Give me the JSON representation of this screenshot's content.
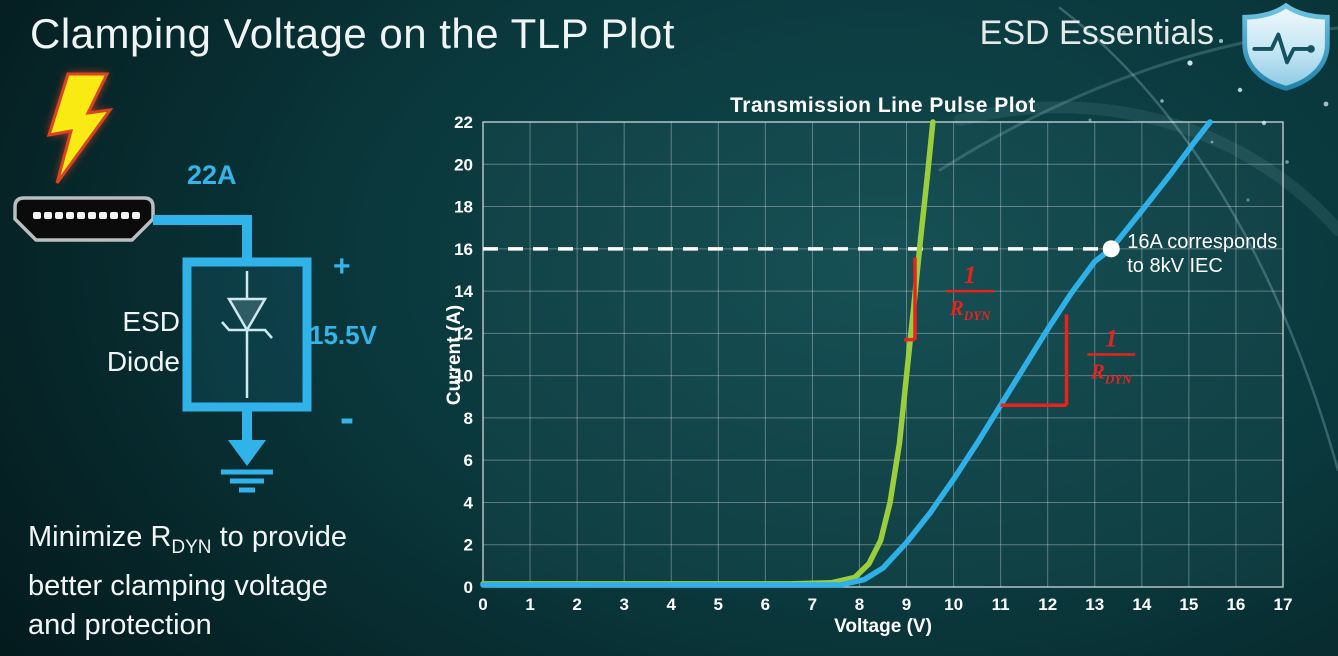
{
  "page": {
    "title": "Clamping Voltage on the TLP Plot",
    "brand": "ESD Essentials",
    "accent_cyan": "#2fb3e8"
  },
  "diagram": {
    "surge_label": "22A",
    "plus_label": "+",
    "voltage_label": "15.5V",
    "minus_label": "-",
    "component_line1": "ESD",
    "component_line2": "Diode",
    "icons": [
      "lightning-icon",
      "hdmi-connector-icon",
      "esd-diode-box",
      "zener-diode-symbol",
      "arrow-down-icon",
      "ground-icon"
    ]
  },
  "takeaway": {
    "line1_pre": "Minimize R",
    "line1_sub": "DYN",
    "line1_post": " to provide",
    "line2": "better clamping voltage",
    "line3": "and protection"
  },
  "chart_data": {
    "type": "line",
    "title": "Transmission Line Pulse Plot",
    "xlabel": "Voltage (V)",
    "ylabel": "Current (A)",
    "xlim": [
      0,
      17
    ],
    "ylim": [
      0,
      22
    ],
    "xtick_step": 1,
    "ytick_step": 2,
    "grid": true,
    "legend": "none",
    "series": [
      {
        "name": "low-rdyn-esd-diode",
        "color": "#9ccd3d",
        "points": [
          [
            0,
            0.15
          ],
          [
            6.5,
            0.15
          ],
          [
            7.4,
            0.2
          ],
          [
            7.9,
            0.45
          ],
          [
            8.2,
            1.1
          ],
          [
            8.45,
            2.2
          ],
          [
            8.65,
            4.0
          ],
          [
            8.85,
            6.8
          ],
          [
            9.0,
            10.0
          ],
          [
            9.15,
            13.2
          ],
          [
            9.3,
            16.5
          ],
          [
            9.45,
            19.6
          ],
          [
            9.56,
            22
          ]
        ]
      },
      {
        "name": "high-rdyn-esd-diode",
        "color": "#2fb0e8",
        "points": [
          [
            0,
            0.1
          ],
          [
            7.6,
            0.1
          ],
          [
            8.1,
            0.35
          ],
          [
            8.5,
            0.9
          ],
          [
            9.0,
            2.1
          ],
          [
            9.5,
            3.5
          ],
          [
            10.0,
            5.1
          ],
          [
            10.5,
            6.8
          ],
          [
            11.0,
            8.6
          ],
          [
            11.5,
            10.4
          ],
          [
            12.0,
            12.2
          ],
          [
            12.5,
            13.9
          ],
          [
            13.0,
            15.4
          ],
          [
            13.35,
            16.0
          ],
          [
            14.0,
            17.8
          ],
          [
            14.6,
            19.5
          ],
          [
            15.1,
            21.0
          ],
          [
            15.45,
            22
          ]
        ]
      }
    ],
    "reference_line": {
      "y": 16,
      "x_start": 0,
      "x_end": 13.35,
      "style": "dashed",
      "color": "#ffffff"
    },
    "marker": {
      "x": 13.35,
      "y": 16,
      "label_line1": "16A corresponds",
      "label_line2": "to 8kV IEC",
      "color": "#ffffff"
    },
    "rdyn_fraction": {
      "numerator": "1",
      "denominator_base": "R",
      "denominator_sub": "DYN",
      "color": "#e8231d"
    },
    "rdyn_markers": [
      {
        "lines": [
          [
            9.18,
            11.7,
            9.18,
            15.6
          ],
          [
            8.95,
            11.7,
            9.18,
            11.7
          ]
        ],
        "fraction_at": [
          10.35,
          14.0
        ]
      },
      {
        "lines": [
          [
            11.0,
            8.6,
            12.4,
            8.6
          ],
          [
            12.4,
            8.6,
            12.4,
            12.9
          ]
        ],
        "fraction_at": [
          13.35,
          11.0
        ]
      }
    ]
  }
}
